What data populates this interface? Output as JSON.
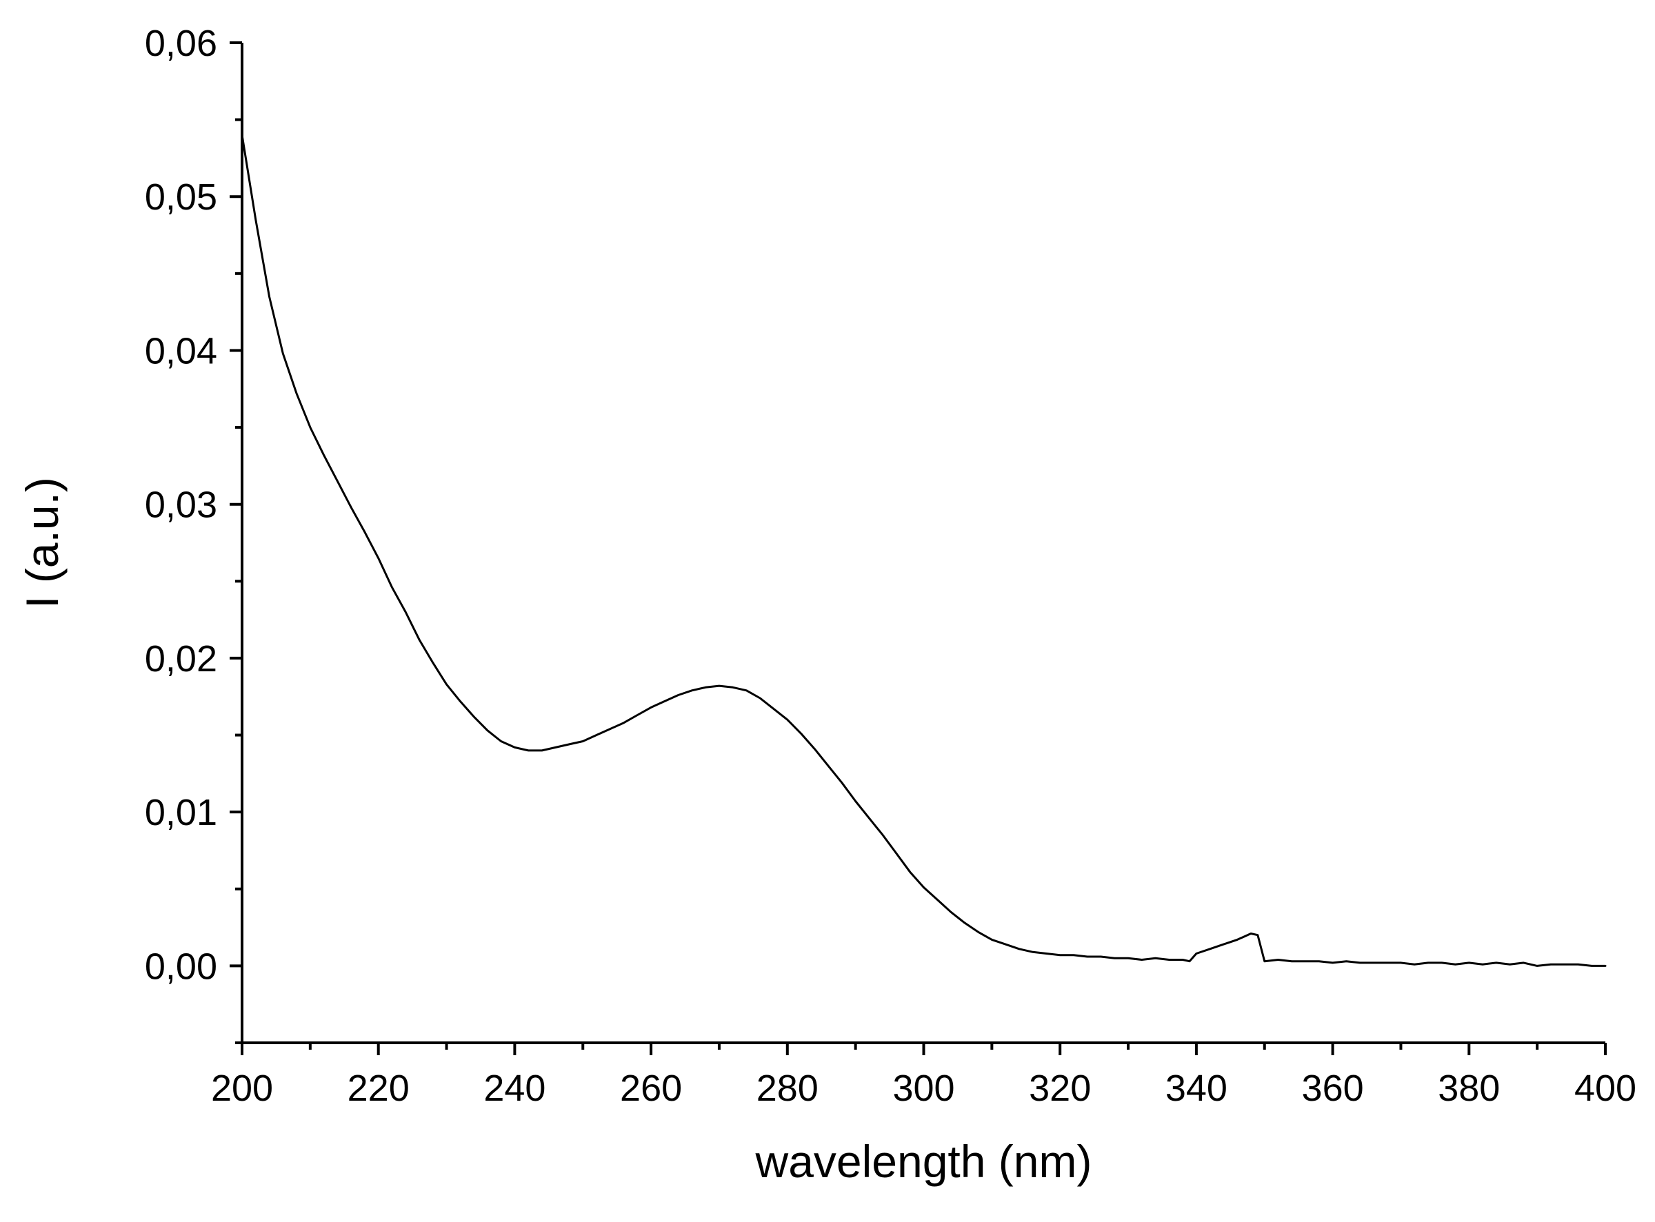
{
  "chart_data": {
    "type": "line",
    "title": "",
    "xlabel": "wavelength (nm)",
    "ylabel": "I (a.u.)",
    "xlim": [
      200,
      400
    ],
    "ylim": [
      -0.005,
      0.06
    ],
    "xticks": [
      200,
      220,
      240,
      260,
      280,
      300,
      320,
      340,
      360,
      380,
      400
    ],
    "xtick_labels": [
      "200",
      "220",
      "240",
      "260",
      "280",
      "300",
      "320",
      "340",
      "360",
      "380",
      "400"
    ],
    "yticks": [
      0.0,
      0.01,
      0.02,
      0.03,
      0.04,
      0.05,
      0.06
    ],
    "ytick_labels": [
      "0,00",
      "0,01",
      "0,02",
      "0,03",
      "0,04",
      "0,05",
      "0,06"
    ],
    "grid": false,
    "line_color": "#000000",
    "series": [
      {
        "x": [
          200,
          202,
          204,
          206,
          208,
          210,
          212,
          214,
          216,
          218,
          220,
          222,
          224,
          226,
          228,
          230,
          232,
          234,
          236,
          238,
          240,
          242,
          244,
          246,
          248,
          250,
          252,
          254,
          256,
          258,
          260,
          262,
          264,
          266,
          268,
          270,
          272,
          274,
          276,
          278,
          280,
          282,
          284,
          286,
          288,
          290,
          292,
          294,
          296,
          298,
          300,
          302,
          304,
          306,
          308,
          310,
          312,
          314,
          316,
          318,
          320,
          322,
          324,
          326,
          328,
          330,
          332,
          334,
          336,
          338,
          339,
          340,
          342,
          344,
          346,
          347,
          348,
          349,
          350,
          352,
          354,
          356,
          358,
          360,
          362,
          364,
          366,
          368,
          370,
          372,
          374,
          376,
          378,
          380,
          382,
          384,
          386,
          388,
          390,
          392,
          394,
          396,
          398,
          400
        ],
        "y": [
          0.054,
          0.0485,
          0.0435,
          0.0398,
          0.0372,
          0.035,
          0.0332,
          0.0315,
          0.0298,
          0.0282,
          0.0265,
          0.0246,
          0.023,
          0.0212,
          0.0197,
          0.0183,
          0.0172,
          0.0162,
          0.0153,
          0.0146,
          0.0142,
          0.014,
          0.014,
          0.0142,
          0.0144,
          0.0146,
          0.015,
          0.0154,
          0.0158,
          0.0163,
          0.0168,
          0.0172,
          0.0176,
          0.0179,
          0.0181,
          0.0182,
          0.0181,
          0.0179,
          0.0174,
          0.0167,
          0.016,
          0.0151,
          0.0141,
          0.013,
          0.0119,
          0.0107,
          0.0096,
          0.0085,
          0.0073,
          0.0061,
          0.0051,
          0.0043,
          0.0035,
          0.0028,
          0.0022,
          0.0017,
          0.0014,
          0.0011,
          0.0009,
          0.0008,
          0.0007,
          0.0007,
          0.0006,
          0.0006,
          0.0005,
          0.0005,
          0.0004,
          0.0005,
          0.0004,
          0.0004,
          0.0003,
          0.0008,
          0.0011,
          0.0014,
          0.0017,
          0.0019,
          0.0021,
          0.002,
          0.0003,
          0.0004,
          0.0003,
          0.0003,
          0.0003,
          0.0002,
          0.0003,
          0.0002,
          0.0002,
          0.0002,
          0.0002,
          0.0001,
          0.0002,
          0.0002,
          0.0001,
          0.0002,
          0.0001,
          0.0002,
          0.0001,
          0.0002,
          0.0,
          0.0001,
          0.0001,
          0.0001,
          0.0,
          0.0
        ]
      }
    ]
  }
}
